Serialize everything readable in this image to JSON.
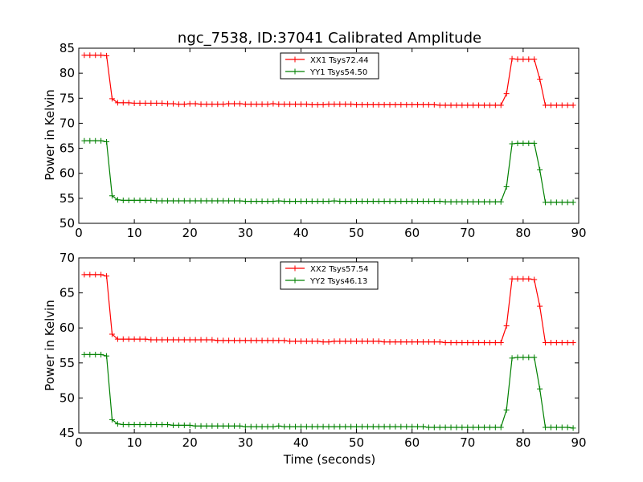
{
  "chart_data": [
    {
      "type": "line",
      "title": "ngc_7538, ID:37041 Calibrated Amplitude",
      "xlabel": "",
      "ylabel": "Power in Kelvin",
      "xlim": [
        0,
        90
      ],
      "ylim": [
        50,
        85
      ],
      "xticks": [
        0,
        10,
        20,
        30,
        40,
        50,
        60,
        70,
        80,
        90
      ],
      "yticks": [
        50,
        55,
        60,
        65,
        70,
        75,
        80,
        85
      ],
      "legend_position": "top-center",
      "series": [
        {
          "name": "XX1 Tsys72.44",
          "color": "#ff0000",
          "x": [
            1,
            2,
            3,
            4,
            5,
            6,
            7,
            8,
            9,
            10,
            11,
            12,
            13,
            14,
            15,
            16,
            17,
            18,
            19,
            20,
            21,
            22,
            23,
            24,
            25,
            26,
            27,
            28,
            29,
            30,
            31,
            32,
            33,
            34,
            35,
            36,
            37,
            38,
            39,
            40,
            41,
            42,
            43,
            44,
            45,
            46,
            47,
            48,
            49,
            50,
            51,
            52,
            53,
            54,
            55,
            56,
            57,
            58,
            59,
            60,
            61,
            62,
            63,
            64,
            65,
            66,
            67,
            68,
            69,
            70,
            71,
            72,
            73,
            74,
            75,
            76,
            77,
            78,
            79,
            80,
            81,
            82,
            83,
            84,
            85,
            86,
            87,
            88,
            89
          ],
          "y": [
            83.6,
            83.6,
            83.6,
            83.6,
            83.5,
            74.9,
            74.1,
            74.1,
            74.1,
            74.0,
            74.0,
            74.0,
            74.0,
            74.0,
            74.0,
            73.9,
            73.9,
            73.8,
            73.8,
            73.9,
            73.9,
            73.8,
            73.8,
            73.8,
            73.8,
            73.8,
            73.9,
            73.9,
            73.9,
            73.8,
            73.8,
            73.8,
            73.8,
            73.8,
            73.9,
            73.8,
            73.8,
            73.8,
            73.8,
            73.8,
            73.8,
            73.7,
            73.7,
            73.7,
            73.8,
            73.8,
            73.8,
            73.8,
            73.8,
            73.7,
            73.7,
            73.7,
            73.7,
            73.7,
            73.7,
            73.7,
            73.7,
            73.7,
            73.7,
            73.7,
            73.7,
            73.7,
            73.7,
            73.7,
            73.6,
            73.6,
            73.6,
            73.6,
            73.6,
            73.6,
            73.6,
            73.6,
            73.6,
            73.6,
            73.6,
            73.6,
            75.9,
            82.9,
            82.8,
            82.8,
            82.8,
            82.8,
            78.8,
            73.6,
            73.6,
            73.6,
            73.6,
            73.6,
            73.6
          ]
        },
        {
          "name": "YY1 Tsys54.50",
          "color": "#008000",
          "x": [
            1,
            2,
            3,
            4,
            5,
            6,
            7,
            8,
            9,
            10,
            11,
            12,
            13,
            14,
            15,
            16,
            17,
            18,
            19,
            20,
            21,
            22,
            23,
            24,
            25,
            26,
            27,
            28,
            29,
            30,
            31,
            32,
            33,
            34,
            35,
            36,
            37,
            38,
            39,
            40,
            41,
            42,
            43,
            44,
            45,
            46,
            47,
            48,
            49,
            50,
            51,
            52,
            53,
            54,
            55,
            56,
            57,
            58,
            59,
            60,
            61,
            62,
            63,
            64,
            65,
            66,
            67,
            68,
            69,
            70,
            71,
            72,
            73,
            74,
            75,
            76,
            77,
            78,
            79,
            80,
            81,
            82,
            83,
            84,
            85,
            86,
            87,
            88,
            89
          ],
          "y": [
            66.5,
            66.5,
            66.5,
            66.5,
            66.3,
            55.5,
            54.7,
            54.6,
            54.6,
            54.6,
            54.6,
            54.6,
            54.6,
            54.5,
            54.5,
            54.5,
            54.5,
            54.5,
            54.5,
            54.5,
            54.5,
            54.5,
            54.5,
            54.5,
            54.5,
            54.5,
            54.5,
            54.5,
            54.5,
            54.4,
            54.4,
            54.4,
            54.4,
            54.4,
            54.4,
            54.5,
            54.4,
            54.4,
            54.4,
            54.4,
            54.4,
            54.4,
            54.4,
            54.4,
            54.4,
            54.5,
            54.4,
            54.4,
            54.4,
            54.4,
            54.4,
            54.4,
            54.4,
            54.4,
            54.4,
            54.4,
            54.4,
            54.4,
            54.4,
            54.4,
            54.4,
            54.4,
            54.4,
            54.4,
            54.4,
            54.3,
            54.3,
            54.3,
            54.3,
            54.3,
            54.3,
            54.3,
            54.3,
            54.3,
            54.3,
            54.3,
            57.3,
            65.9,
            66.0,
            66.0,
            66.0,
            66.0,
            60.7,
            54.2,
            54.2,
            54.2,
            54.2,
            54.2,
            54.2
          ]
        }
      ]
    },
    {
      "type": "line",
      "title": "",
      "xlabel": "Time (seconds)",
      "ylabel": "Power in Kelvin",
      "xlim": [
        0,
        90
      ],
      "ylim": [
        45,
        70
      ],
      "xticks": [
        0,
        10,
        20,
        30,
        40,
        50,
        60,
        70,
        80,
        90
      ],
      "yticks": [
        45,
        50,
        55,
        60,
        65,
        70
      ],
      "legend_position": "top-center",
      "series": [
        {
          "name": "XX2 Tsys57.54",
          "color": "#ff0000",
          "x": [
            1,
            2,
            3,
            4,
            5,
            6,
            7,
            8,
            9,
            10,
            11,
            12,
            13,
            14,
            15,
            16,
            17,
            18,
            19,
            20,
            21,
            22,
            23,
            24,
            25,
            26,
            27,
            28,
            29,
            30,
            31,
            32,
            33,
            34,
            35,
            36,
            37,
            38,
            39,
            40,
            41,
            42,
            43,
            44,
            45,
            46,
            47,
            48,
            49,
            50,
            51,
            52,
            53,
            54,
            55,
            56,
            57,
            58,
            59,
            60,
            61,
            62,
            63,
            64,
            65,
            66,
            67,
            68,
            69,
            70,
            71,
            72,
            73,
            74,
            75,
            76,
            77,
            78,
            79,
            80,
            81,
            82,
            83,
            84,
            85,
            86,
            87,
            88,
            89
          ],
          "y": [
            67.6,
            67.6,
            67.6,
            67.6,
            67.4,
            59.1,
            58.4,
            58.4,
            58.4,
            58.4,
            58.4,
            58.4,
            58.3,
            58.3,
            58.3,
            58.3,
            58.3,
            58.3,
            58.3,
            58.3,
            58.3,
            58.3,
            58.3,
            58.3,
            58.2,
            58.2,
            58.2,
            58.2,
            58.2,
            58.2,
            58.2,
            58.2,
            58.2,
            58.2,
            58.2,
            58.2,
            58.2,
            58.1,
            58.1,
            58.1,
            58.1,
            58.1,
            58.1,
            58.0,
            58.0,
            58.1,
            58.1,
            58.1,
            58.1,
            58.1,
            58.1,
            58.1,
            58.1,
            58.1,
            58.0,
            58.0,
            58.0,
            58.0,
            58.0,
            58.0,
            58.0,
            58.0,
            58.0,
            58.0,
            58.0,
            57.9,
            57.9,
            57.9,
            57.9,
            57.9,
            57.9,
            57.9,
            57.9,
            57.9,
            57.9,
            57.9,
            60.3,
            67.0,
            67.0,
            67.0,
            67.0,
            66.9,
            63.1,
            57.9,
            57.9,
            57.9,
            57.9,
            57.9,
            57.9
          ]
        },
        {
          "name": "YY2 Tsys46.13",
          "color": "#008000",
          "x": [
            1,
            2,
            3,
            4,
            5,
            6,
            7,
            8,
            9,
            10,
            11,
            12,
            13,
            14,
            15,
            16,
            17,
            18,
            19,
            20,
            21,
            22,
            23,
            24,
            25,
            26,
            27,
            28,
            29,
            30,
            31,
            32,
            33,
            34,
            35,
            36,
            37,
            38,
            39,
            40,
            41,
            42,
            43,
            44,
            45,
            46,
            47,
            48,
            49,
            50,
            51,
            52,
            53,
            54,
            55,
            56,
            57,
            58,
            59,
            60,
            61,
            62,
            63,
            64,
            65,
            66,
            67,
            68,
            69,
            70,
            71,
            72,
            73,
            74,
            75,
            76,
            77,
            78,
            79,
            80,
            81,
            82,
            83,
            84,
            85,
            86,
            87,
            88,
            89
          ],
          "y": [
            56.2,
            56.2,
            56.2,
            56.2,
            56.0,
            46.9,
            46.3,
            46.2,
            46.2,
            46.2,
            46.2,
            46.2,
            46.2,
            46.2,
            46.2,
            46.2,
            46.1,
            46.1,
            46.1,
            46.1,
            46.0,
            46.0,
            46.0,
            46.0,
            46.0,
            46.0,
            46.0,
            46.0,
            46.0,
            45.9,
            45.9,
            45.9,
            45.9,
            45.9,
            45.9,
            46.0,
            45.9,
            45.9,
            45.9,
            45.9,
            45.9,
            45.9,
            45.9,
            45.9,
            45.9,
            45.9,
            45.9,
            45.9,
            45.9,
            45.9,
            45.9,
            45.9,
            45.9,
            45.9,
            45.9,
            45.9,
            45.9,
            45.9,
            45.9,
            45.9,
            45.9,
            45.9,
            45.8,
            45.8,
            45.8,
            45.8,
            45.8,
            45.8,
            45.8,
            45.8,
            45.8,
            45.8,
            45.8,
            45.8,
            45.8,
            45.8,
            48.3,
            55.7,
            55.8,
            55.8,
            55.8,
            55.8,
            51.3,
            45.8,
            45.8,
            45.8,
            45.8,
            45.8,
            45.7
          ]
        }
      ]
    }
  ]
}
